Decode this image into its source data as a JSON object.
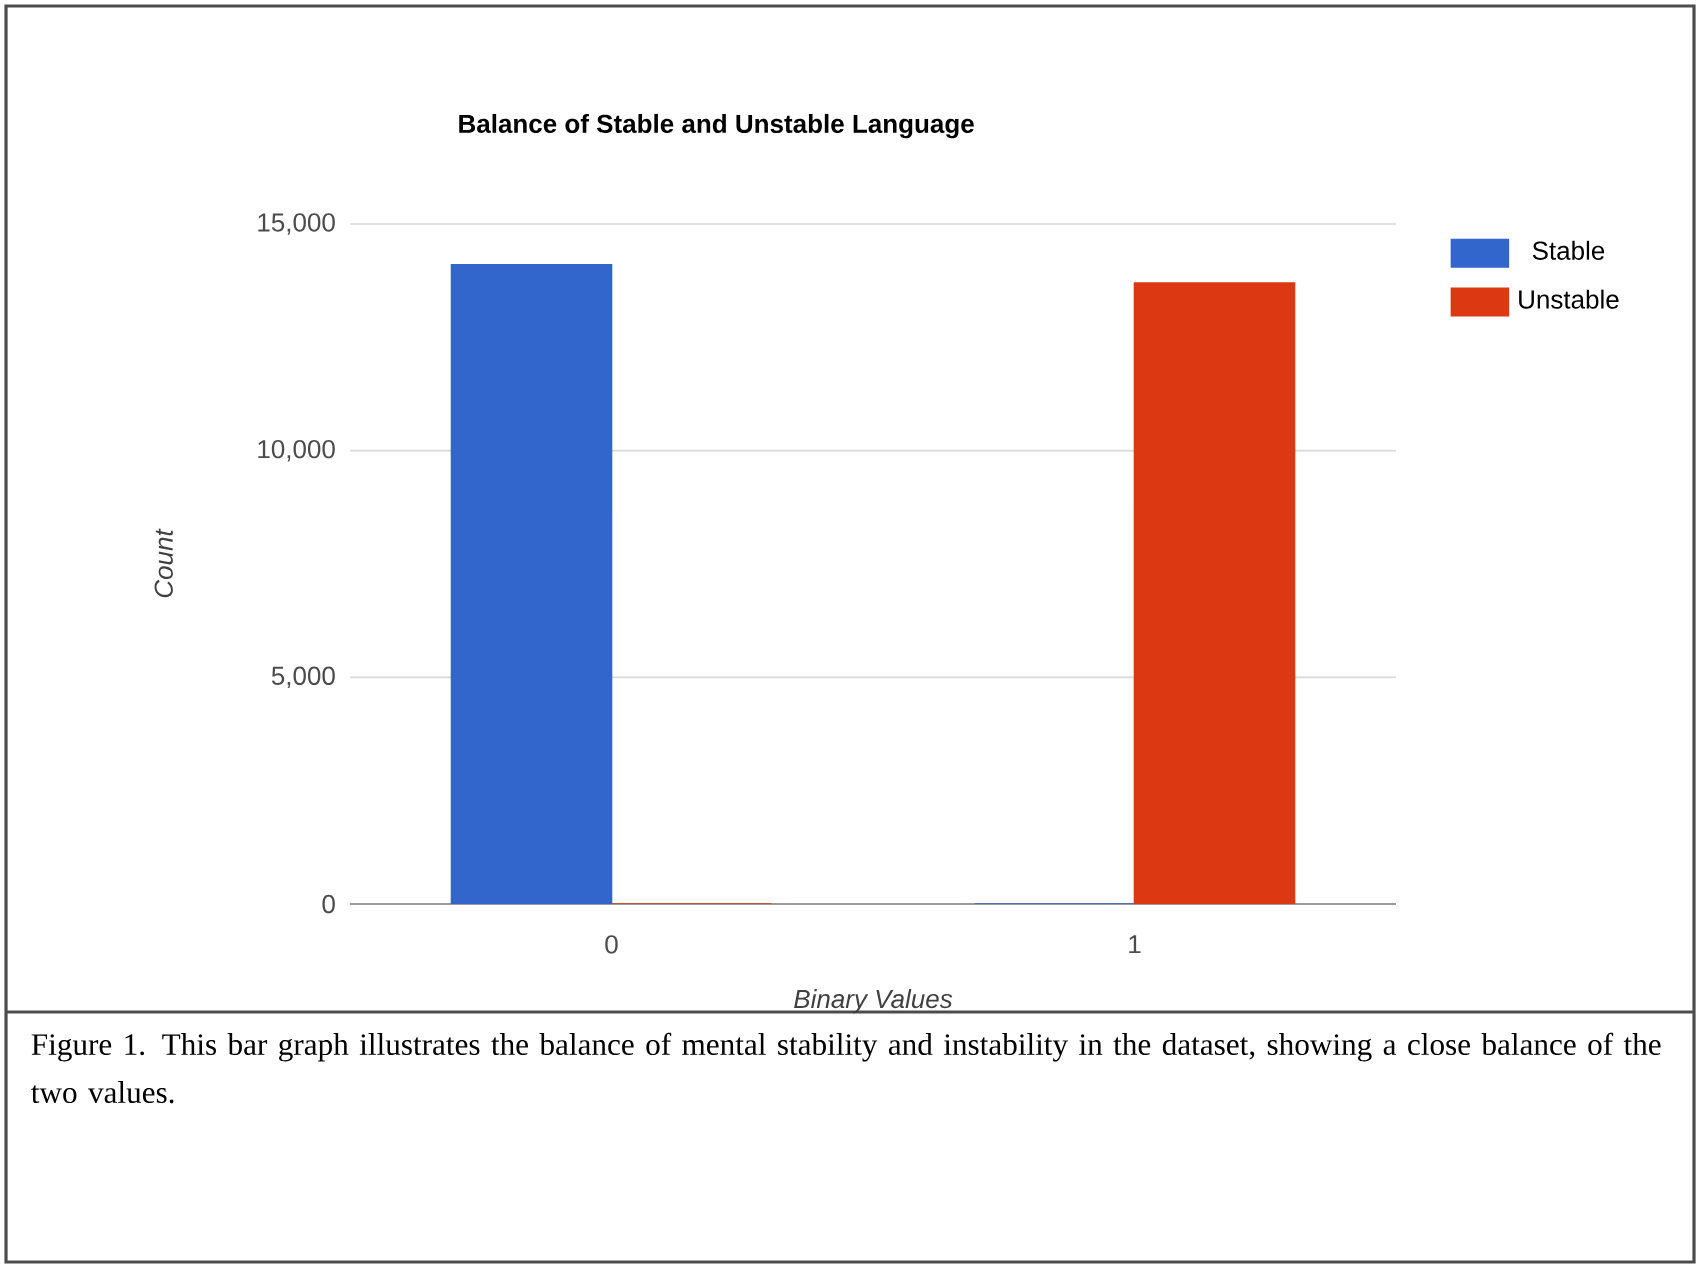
{
  "chart_data": {
    "type": "bar",
    "title": "Balance of Stable and Unstable Language",
    "xlabel": "Binary Values",
    "ylabel": "Count",
    "categories": [
      "0",
      "1"
    ],
    "series": [
      {
        "name": "Stable",
        "color": "#3366cc",
        "values": [
          14100,
          0
        ]
      },
      {
        "name": "Unstable",
        "color": "#dc3912",
        "values": [
          0,
          13700
        ]
      }
    ],
    "ylim": [
      0,
      15000
    ],
    "yticks": [
      {
        "value": 0,
        "label": "0"
      },
      {
        "value": 5000,
        "label": "5,000"
      },
      {
        "value": 10000,
        "label": "10,000"
      },
      {
        "value": 15000,
        "label": "15,000"
      }
    ],
    "grid": "y",
    "legend": "top right",
    "annotations": [
      "Figure 1. This bar graph illustrates the balance of mental stability and instability in the dataset, showing a close balance of the two values."
    ]
  }
}
